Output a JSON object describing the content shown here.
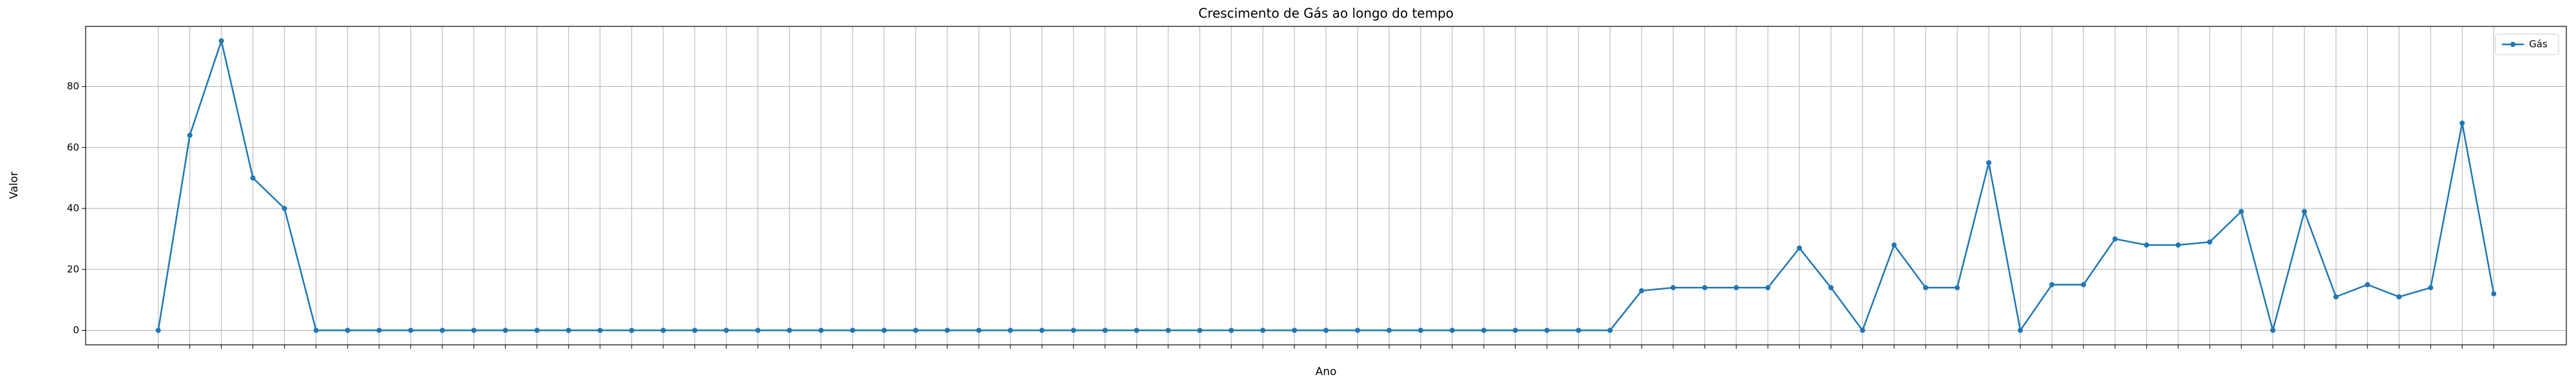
{
  "chart_data": {
    "type": "line",
    "title": "Crescimento de Gás ao longo do tempo",
    "x_label": "Ano",
    "y_label": "Valor",
    "categories": [
      null,
      null,
      null,
      null,
      null,
      null,
      null,
      null,
      null,
      null,
      null,
      null,
      null,
      null,
      null,
      null,
      null,
      null,
      null,
      null,
      null,
      null,
      null,
      null,
      null,
      null,
      null,
      null,
      null,
      null,
      null,
      null,
      null,
      null,
      null,
      null,
      null,
      null,
      null,
      null,
      null,
      null,
      null,
      null,
      null,
      null,
      null,
      null,
      null,
      null,
      null,
      null,
      null,
      null,
      null,
      null,
      null,
      null,
      null,
      null,
      null,
      null,
      null,
      null,
      null,
      null,
      null,
      null,
      null,
      null,
      null,
      null,
      null,
      null,
      null
    ],
    "series": [
      {
        "name": "Gás",
        "color": "#1f77b4",
        "values": [
          0,
          64,
          95,
          50,
          40,
          0,
          0,
          0,
          0,
          0,
          0,
          0,
          0,
          0,
          0,
          0,
          0,
          0,
          0,
          0,
          0,
          0,
          0,
          0,
          0,
          0,
          0,
          0,
          0,
          0,
          0,
          0,
          0,
          0,
          0,
          0,
          0,
          0,
          0,
          0,
          0,
          0,
          0,
          0,
          0,
          0,
          0,
          13,
          14,
          14,
          14,
          14,
          27,
          14,
          0,
          28,
          14,
          14,
          55,
          0,
          15,
          15,
          30,
          28,
          28,
          29,
          39,
          0,
          39,
          11,
          15,
          11,
          14,
          68,
          12
        ]
      }
    ],
    "ylim": [
      -4.75,
      99.75
    ],
    "yticks": [
      0,
      20,
      40,
      60,
      80
    ],
    "grid": true,
    "legend": "upper right"
  }
}
